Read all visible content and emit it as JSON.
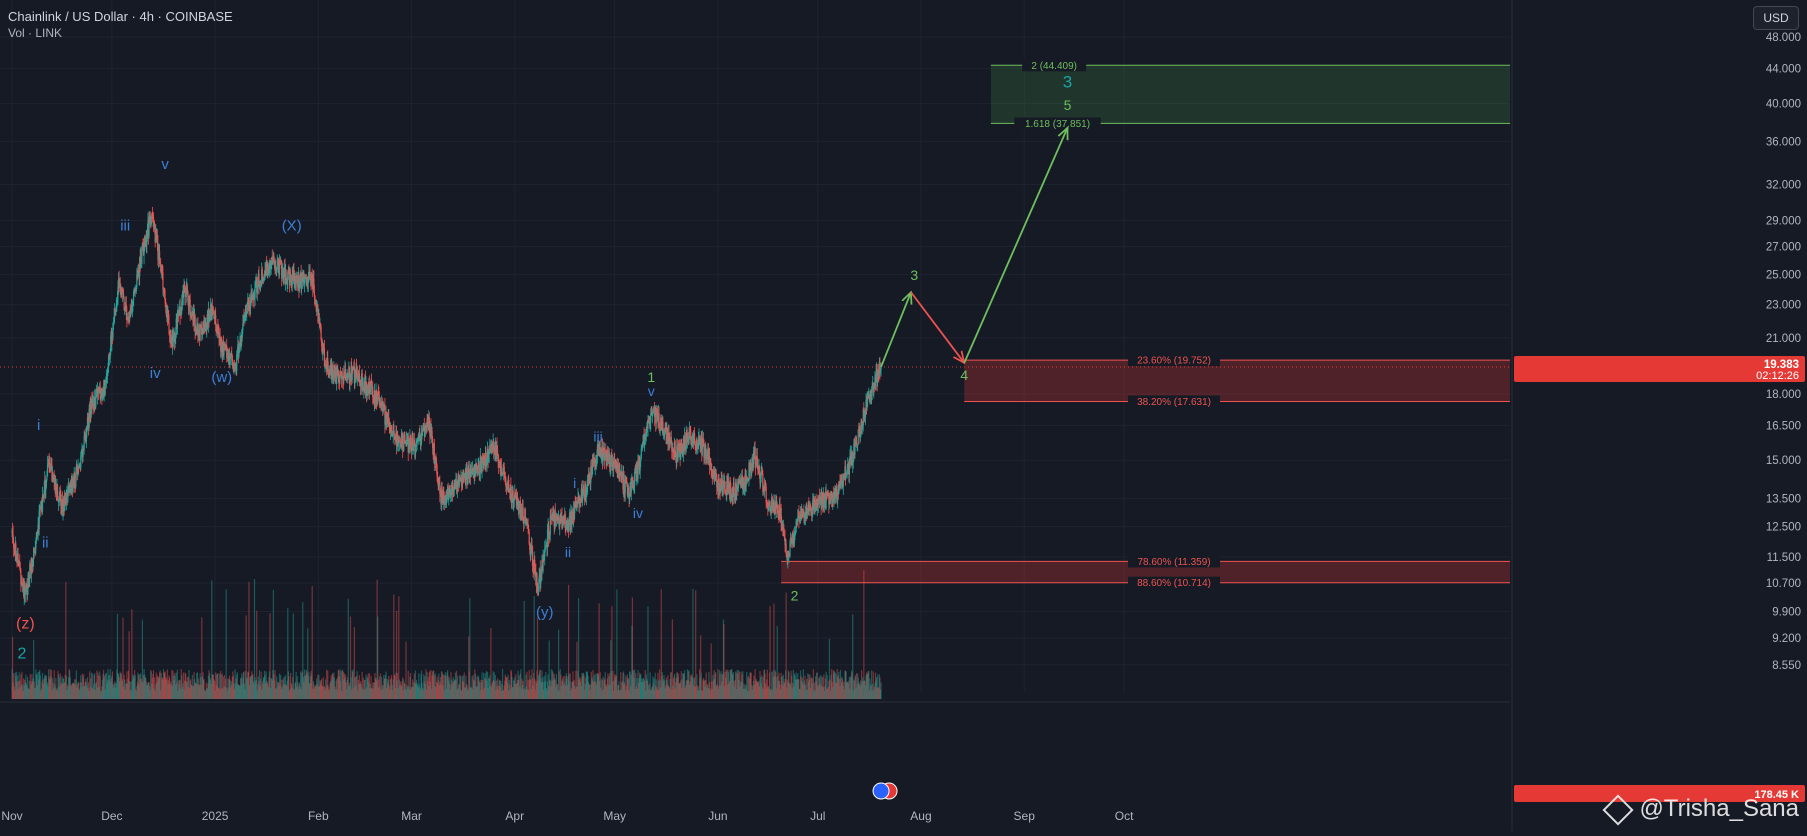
{
  "header": {
    "title": "Chainlink / US Dollar · 4h · COINBASE",
    "subtitle": "Vol · LINK"
  },
  "toolbar": {
    "currency_label": "USD"
  },
  "watermark": "@Trisha_Sana",
  "colors": {
    "background": "#161a25",
    "up": "#26a69a",
    "down": "#ef5350",
    "wave_blue": "#3d7fd6",
    "wave_green": "#6fbf5e",
    "wave_red": "#ef5350",
    "wave_teal": "#1aa5a5",
    "price_badge": "#e53935",
    "zone_green": "#1f3b2a",
    "zone_red": "#5c1f28"
  },
  "chart_data": {
    "type": "candlestick",
    "title": "Chainlink / US Dollar · 4h · COINBASE",
    "y_scale": "log",
    "ylim": [
      8.2,
      48.0
    ],
    "y_ticks": [
      "48.000",
      "44.000",
      "40.000",
      "36.000",
      "32.000",
      "29.000",
      "27.000",
      "25.000",
      "23.000",
      "21.000",
      "18.000",
      "16.500",
      "15.000",
      "13.500",
      "12.500",
      "11.500",
      "10.700",
      "9.900",
      "9.200",
      "8.550"
    ],
    "x_ticks": [
      "Nov",
      "Dec",
      "2025",
      "Feb",
      "Mar",
      "Apr",
      "May",
      "Jun",
      "Jul",
      "Aug",
      "Sep",
      "Oct"
    ],
    "x_range": [
      "2024-11-01",
      "2025-10-28"
    ],
    "last_price": "19.383",
    "countdown": "02:12:26",
    "volume_label": "178.45 K",
    "price_path": [
      [
        "2024-11-01",
        12.3
      ],
      [
        "2024-11-05",
        10.3
      ],
      [
        "2024-11-08",
        12.0
      ],
      [
        "2024-11-12",
        14.8
      ],
      [
        "2024-11-16",
        13.2
      ],
      [
        "2024-11-21",
        14.6
      ],
      [
        "2024-11-25",
        17.6
      ],
      [
        "2024-11-29",
        18.3
      ],
      [
        "2024-12-03",
        24.5
      ],
      [
        "2024-12-06",
        21.8
      ],
      [
        "2024-12-10",
        26.5
      ],
      [
        "2024-12-13",
        29.5
      ],
      [
        "2024-12-16",
        25.0
      ],
      [
        "2024-12-19",
        20.5
      ],
      [
        "2024-12-23",
        24.2
      ],
      [
        "2024-12-27",
        21.0
      ],
      [
        "2024-12-31",
        22.8
      ],
      [
        "2025-01-03",
        20.5
      ],
      [
        "2025-01-07",
        19.3
      ],
      [
        "2025-01-10",
        22.5
      ],
      [
        "2025-01-14",
        24.5
      ],
      [
        "2025-01-18",
        26.0
      ],
      [
        "2025-01-22",
        25.0
      ],
      [
        "2025-01-26",
        24.5
      ],
      [
        "2025-01-30",
        25.0
      ],
      [
        "2025-02-03",
        19.5
      ],
      [
        "2025-02-07",
        18.8
      ],
      [
        "2025-02-12",
        19.0
      ],
      [
        "2025-02-18",
        18.0
      ],
      [
        "2025-02-24",
        16.0
      ],
      [
        "2025-03-02",
        15.5
      ],
      [
        "2025-03-06",
        16.8
      ],
      [
        "2025-03-10",
        13.5
      ],
      [
        "2025-03-14",
        14.0
      ],
      [
        "2025-03-20",
        14.6
      ],
      [
        "2025-03-26",
        15.5
      ],
      [
        "2025-03-31",
        13.6
      ],
      [
        "2025-04-04",
        12.8
      ],
      [
        "2025-04-08",
        10.6
      ],
      [
        "2025-04-12",
        12.8
      ],
      [
        "2025-04-17",
        12.6
      ],
      [
        "2025-04-22",
        13.8
      ],
      [
        "2025-04-26",
        15.4
      ],
      [
        "2025-05-01",
        14.9
      ],
      [
        "2025-05-05",
        13.7
      ],
      [
        "2025-05-08",
        14.6
      ],
      [
        "2025-05-12",
        17.3
      ],
      [
        "2025-05-16",
        16.2
      ],
      [
        "2025-05-20",
        15.2
      ],
      [
        "2025-05-24",
        16.2
      ],
      [
        "2025-05-28",
        15.4
      ],
      [
        "2025-06-01",
        14.0
      ],
      [
        "2025-06-05",
        13.8
      ],
      [
        "2025-06-09",
        14.1
      ],
      [
        "2025-06-12",
        15.2
      ],
      [
        "2025-06-16",
        13.4
      ],
      [
        "2025-06-20",
        12.9
      ],
      [
        "2025-06-22",
        11.5
      ],
      [
        "2025-06-25",
        12.7
      ],
      [
        "2025-06-29",
        13.2
      ],
      [
        "2025-07-03",
        13.4
      ],
      [
        "2025-07-07",
        13.7
      ],
      [
        "2025-07-11",
        15.0
      ],
      [
        "2025-07-15",
        17.1
      ],
      [
        "2025-07-18",
        18.6
      ],
      [
        "2025-07-20",
        19.383
      ]
    ],
    "projection": [
      {
        "from": [
          "2025-07-20",
          19.383
        ],
        "to": [
          "2025-07-29",
          23.8
        ],
        "color": "green"
      },
      {
        "from": [
          "2025-07-29",
          23.8
        ],
        "to": [
          "2025-08-14",
          19.6
        ],
        "color": "red"
      },
      {
        "from": [
          "2025-08-14",
          19.6
        ],
        "to": [
          "2025-09-14",
          37.4
        ],
        "color": "green"
      }
    ],
    "zones": [
      {
        "top": 44.409,
        "bottom": 37.851,
        "from": "2025-08-22",
        "color": "green"
      },
      {
        "top": 19.752,
        "bottom": 17.631,
        "from": "2025-08-14",
        "color": "red"
      },
      {
        "top": 11.359,
        "bottom": 10.714,
        "from": "2025-06-20",
        "color": "red"
      }
    ],
    "fib_levels": [
      {
        "label": "2 (44.409)",
        "value": 44.409,
        "color": "green",
        "label_date": "2025-09-10"
      },
      {
        "label": "1.618 (37.851)",
        "value": 37.851,
        "color": "green",
        "label_date": "2025-09-11"
      },
      {
        "label": "23.60% (19.752)",
        "value": 19.752,
        "color": "red",
        "label_date": "2025-10-16"
      },
      {
        "label": "38.20% (17.631)",
        "value": 17.631,
        "color": "red",
        "label_date": "2025-10-16"
      },
      {
        "label": "78.60% (11.359)",
        "value": 11.359,
        "color": "red",
        "label_date": "2025-10-16"
      },
      {
        "label": "88.60% (10.714)",
        "value": 10.714,
        "color": "red",
        "label_date": "2025-10-16"
      }
    ],
    "wave_labels": [
      {
        "text": "(z)",
        "date": "2024-11-05",
        "price": 9.45,
        "color": "red",
        "size": 16
      },
      {
        "text": "2",
        "date": "2024-11-04",
        "price": 8.7,
        "color": "teal",
        "size": 16
      },
      {
        "text": "i",
        "date": "2024-11-09",
        "price": 16.3,
        "color": "blue",
        "size": 15
      },
      {
        "text": "ii",
        "date": "2024-11-11",
        "price": 11.8,
        "color": "blue",
        "size": 15
      },
      {
        "text": "iii",
        "date": "2024-12-05",
        "price": 28.2,
        "color": "blue",
        "size": 15
      },
      {
        "text": "iv",
        "date": "2024-12-14",
        "price": 18.8,
        "color": "blue",
        "size": 15
      },
      {
        "text": "v",
        "date": "2024-12-17",
        "price": 33.4,
        "color": "blue",
        "size": 15
      },
      {
        "text": "(w)",
        "date": "2025-01-03",
        "price": 18.6,
        "color": "blue",
        "size": 15
      },
      {
        "text": "(X)",
        "date": "2025-01-24",
        "price": 28.2,
        "color": "blue",
        "size": 15
      },
      {
        "text": "(y)",
        "date": "2025-04-10",
        "price": 9.75,
        "color": "blue",
        "size": 15
      },
      {
        "text": "i",
        "date": "2025-04-19",
        "price": 13.9,
        "color": "blue",
        "size": 14
      },
      {
        "text": "ii",
        "date": "2025-04-17",
        "price": 11.5,
        "color": "blue",
        "size": 14
      },
      {
        "text": "iii",
        "date": "2025-04-26",
        "price": 15.8,
        "color": "blue",
        "size": 14
      },
      {
        "text": "iv",
        "date": "2025-05-08",
        "price": 12.8,
        "color": "blue",
        "size": 14
      },
      {
        "text": "v",
        "date": "2025-05-12",
        "price": 17.9,
        "color": "blue",
        "size": 14
      },
      {
        "text": "1",
        "date": "2025-05-12",
        "price": 18.6,
        "color": "green",
        "size": 14
      },
      {
        "text": "2",
        "date": "2025-06-24",
        "price": 10.2,
        "color": "green",
        "size": 14
      },
      {
        "text": "3",
        "date": "2025-07-30",
        "price": 24.6,
        "color": "green",
        "size": 14
      },
      {
        "text": "4",
        "date": "2025-08-14",
        "price": 18.7,
        "color": "green",
        "size": 14
      },
      {
        "text": "5",
        "date": "2025-09-14",
        "price": 39.3,
        "color": "green",
        "size": 14
      },
      {
        "text": "3",
        "date": "2025-09-14",
        "price": 41.8,
        "color": "teal",
        "size": 17
      }
    ]
  }
}
